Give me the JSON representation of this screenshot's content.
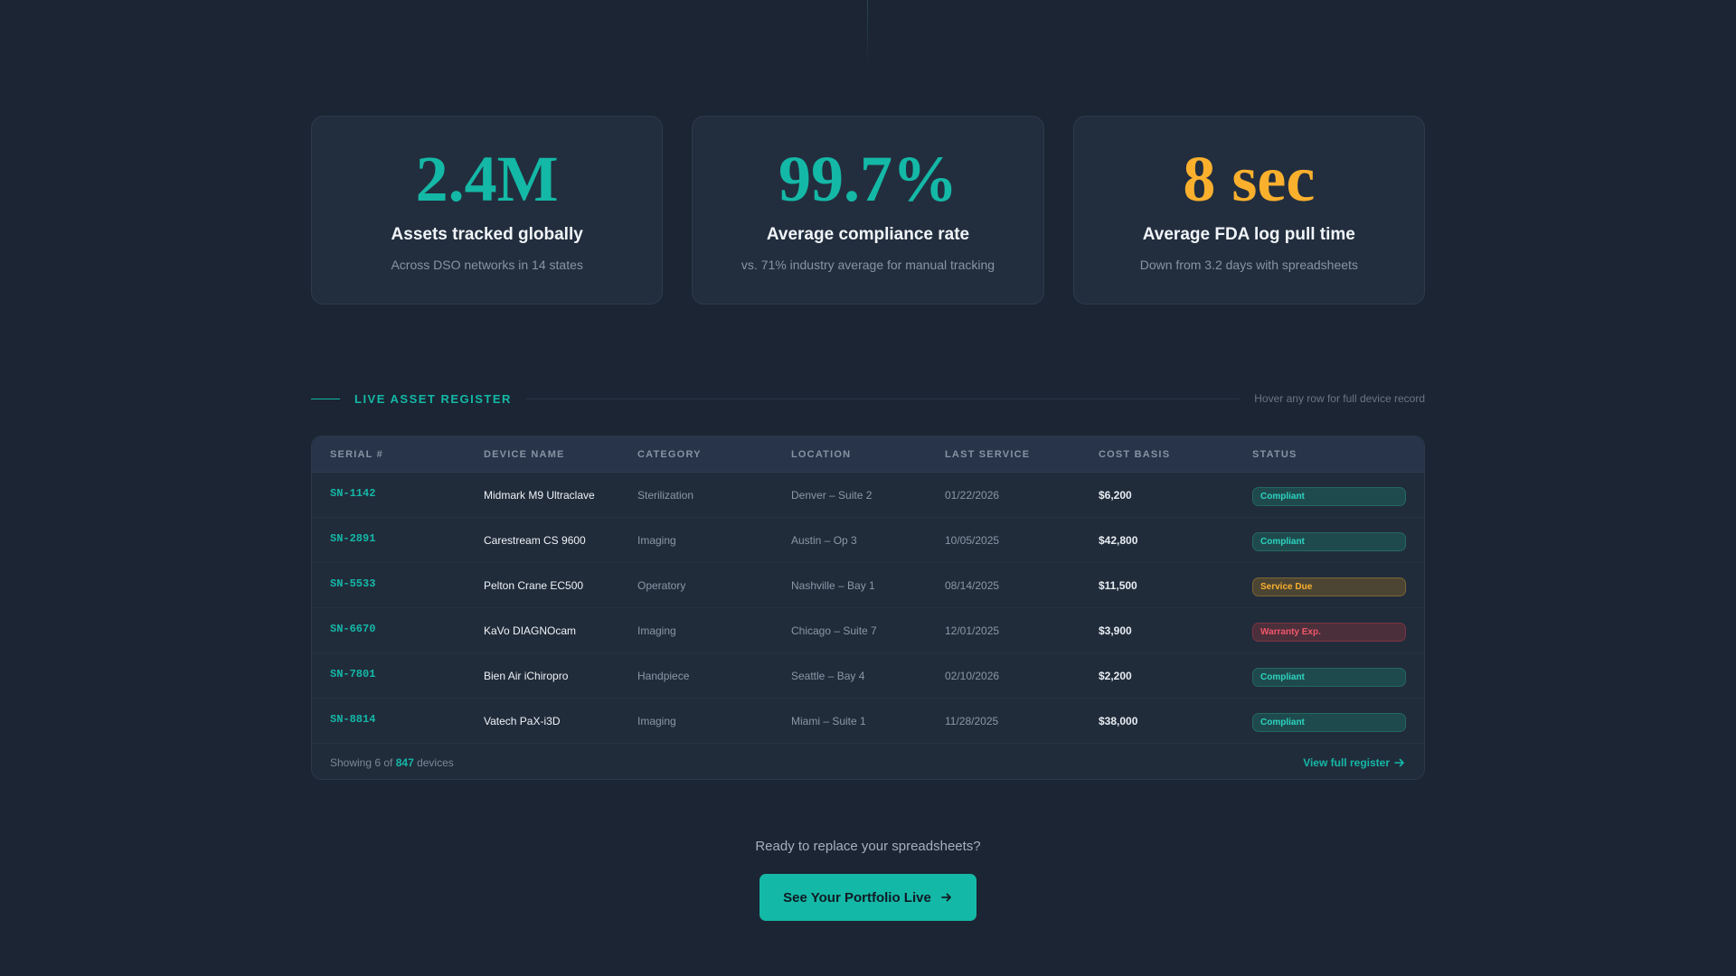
{
  "stats": [
    {
      "value": "2.4M",
      "label": "Assets tracked globally",
      "desc": "Across DSO networks in 14 states",
      "color": "#14b8a6"
    },
    {
      "value": "99.7%",
      "label": "Average compliance rate",
      "desc": "vs. 71% industry average for manual tracking",
      "color": "#14b8a6"
    },
    {
      "value": "8 sec",
      "label": "Average FDA log pull time",
      "desc": "Down from 3.2 days with spreadsheets",
      "color": "#fbb02d"
    }
  ],
  "register": {
    "title": "LIVE ASSET REGISTER",
    "hint": "Hover any row for full device record",
    "columns": [
      "SERIAL #",
      "DEVICE NAME",
      "CATEGORY",
      "LOCATION",
      "LAST SERVICE",
      "COST BASIS",
      "STATUS"
    ],
    "rows": [
      {
        "serial": "SN-1142",
        "name": "Midmark M9 Ultraclave",
        "category": "Sterilization",
        "location": "Denver – Suite 2",
        "last_service": "01/22/2026",
        "cost": "$6,200",
        "status": "Compliant",
        "status_type": "compliant"
      },
      {
        "serial": "SN-2891",
        "name": "Carestream CS 9600",
        "category": "Imaging",
        "location": "Austin – Op 3",
        "last_service": "10/05/2025",
        "cost": "$42,800",
        "status": "Compliant",
        "status_type": "compliant"
      },
      {
        "serial": "SN-5533",
        "name": "Pelton Crane EC500",
        "category": "Operatory",
        "location": "Nashville – Bay 1",
        "last_service": "08/14/2025",
        "cost": "$11,500",
        "status": "Service Due",
        "status_type": "due"
      },
      {
        "serial": "SN-6670",
        "name": "KaVo DIAGNOcam",
        "category": "Imaging",
        "location": "Chicago – Suite 7",
        "last_service": "12/01/2025",
        "cost": "$3,900",
        "status": "Warranty Exp.",
        "status_type": "warn"
      },
      {
        "serial": "SN-7801",
        "name": "Bien Air iChiropro",
        "category": "Handpiece",
        "location": "Seattle – Bay 4",
        "last_service": "02/10/2026",
        "cost": "$2,200",
        "status": "Compliant",
        "status_type": "compliant"
      },
      {
        "serial": "SN-8814",
        "name": "Vatech PaX-i3D",
        "category": "Imaging",
        "location": "Miami – Suite 1",
        "last_service": "11/28/2025",
        "cost": "$38,000",
        "status": "Compliant",
        "status_type": "compliant"
      }
    ],
    "footer": {
      "prefix": "Showing 6 of ",
      "count": "847",
      "suffix": " devices",
      "link": "View full register"
    }
  },
  "cta": {
    "prompt": "Ready to replace your spreadsheets?",
    "button": "See Your Portfolio Live"
  },
  "icons": {
    "arrow": "arrow-right-icon"
  }
}
